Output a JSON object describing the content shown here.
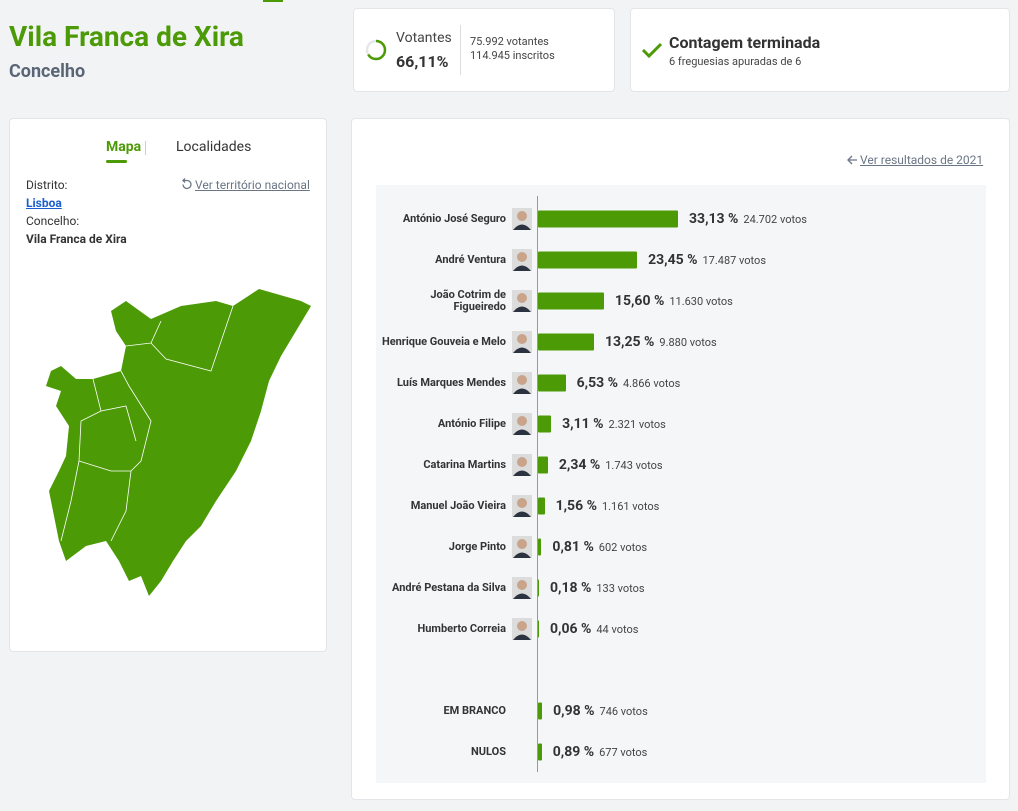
{
  "header": {
    "title": "Vila Franca de Xira",
    "subtitle": "Concelho"
  },
  "turnout": {
    "label": "Votantes",
    "value": 66.11,
    "value_label": "66,11%",
    "voters": "75.992 votantes",
    "registered": "114.945 inscritos"
  },
  "status": {
    "title": "Contagem terminada",
    "detail": "6 freguesias apuradas de 6"
  },
  "map_panel": {
    "tabs": [
      "Mapa",
      "Localidades"
    ],
    "district_label": "Distrito:",
    "district": "Lisboa",
    "municipality_label": "Concelho:",
    "municipality": "Vila Franca de Xira",
    "national_link": "Ver território nacional"
  },
  "results": {
    "link": "Ver resultados de 2021",
    "candidates": [
      {
        "name": "António José Seguro",
        "value": 33.13,
        "value_label": "33,13 %",
        "votes": "24.702 votos"
      },
      {
        "name": "André Ventura",
        "value": 23.45,
        "value_label": "23,45 %",
        "votes": "17.487 votos"
      },
      {
        "name": "João Cotrim de Figueiredo",
        "value": 15.6,
        "value_label": "15,60 %",
        "votes": "11.630 votos"
      },
      {
        "name": "Henrique Gouveia e Melo",
        "value": 13.25,
        "value_label": "13,25 %",
        "votes": "9.880 votos"
      },
      {
        "name": "Luís Marques Mendes",
        "value": 6.53,
        "value_label": "6,53 %",
        "votes": "4.866 votos"
      },
      {
        "name": "António Filipe",
        "value": 3.11,
        "value_label": "3,11 %",
        "votes": "2.321 votos"
      },
      {
        "name": "Catarina Martins",
        "value": 2.34,
        "value_label": "2,34 %",
        "votes": "1.743 votos"
      },
      {
        "name": "Manuel João Vieira",
        "value": 1.56,
        "value_label": "1,56 %",
        "votes": "1.161 votos"
      },
      {
        "name": "Jorge Pinto",
        "value": 0.81,
        "value_label": "0,81 %",
        "votes": "602 votos"
      },
      {
        "name": "André Pestana da Silva",
        "value": 0.18,
        "value_label": "0,18 %",
        "votes": "133 votos"
      },
      {
        "name": "Humberto Correia",
        "value": 0.06,
        "value_label": "0,06 %",
        "votes": "44 votos"
      }
    ],
    "other": [
      {
        "name": "EM BRANCO",
        "value": 0.98,
        "value_label": "0,98 %",
        "votes": "746 votos"
      },
      {
        "name": "NULOS",
        "value": 0.89,
        "value_label": "0,89 %",
        "votes": "677 votos"
      }
    ]
  }
}
